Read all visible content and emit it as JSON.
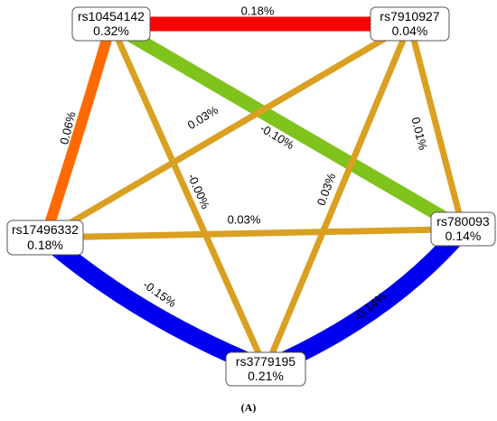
{
  "nodes": [
    {
      "label": "rs10454142",
      "value": "0.32%"
    },
    {
      "label": "rs7910927",
      "value": "0.04%"
    },
    {
      "label": "rs780093",
      "value": "0.14%"
    },
    {
      "label": "rs3779195",
      "value": "0.21%"
    },
    {
      "label": "rs17496332",
      "value": "0.18%"
    }
  ],
  "edges": [
    {
      "label": "0.18%",
      "color": "#ff0000"
    },
    {
      "label": "0.06%",
      "color": "#ff6a00"
    },
    {
      "label": "-0.10%",
      "color": "#7fc31c"
    },
    {
      "label": "-0.00%",
      "color": "#d9a021"
    },
    {
      "label": "0.03%",
      "color": "#d9a021"
    },
    {
      "label": "0.03%",
      "color": "#d9a021"
    },
    {
      "label": "0.01%",
      "color": "#d9a021"
    },
    {
      "label": "0.03%",
      "color": "#d9a021"
    },
    {
      "label": "-0.15%",
      "color": "#0000ee"
    },
    {
      "label": "-0.14%",
      "color": "#0000ee"
    }
  ],
  "caption": "(A)"
}
